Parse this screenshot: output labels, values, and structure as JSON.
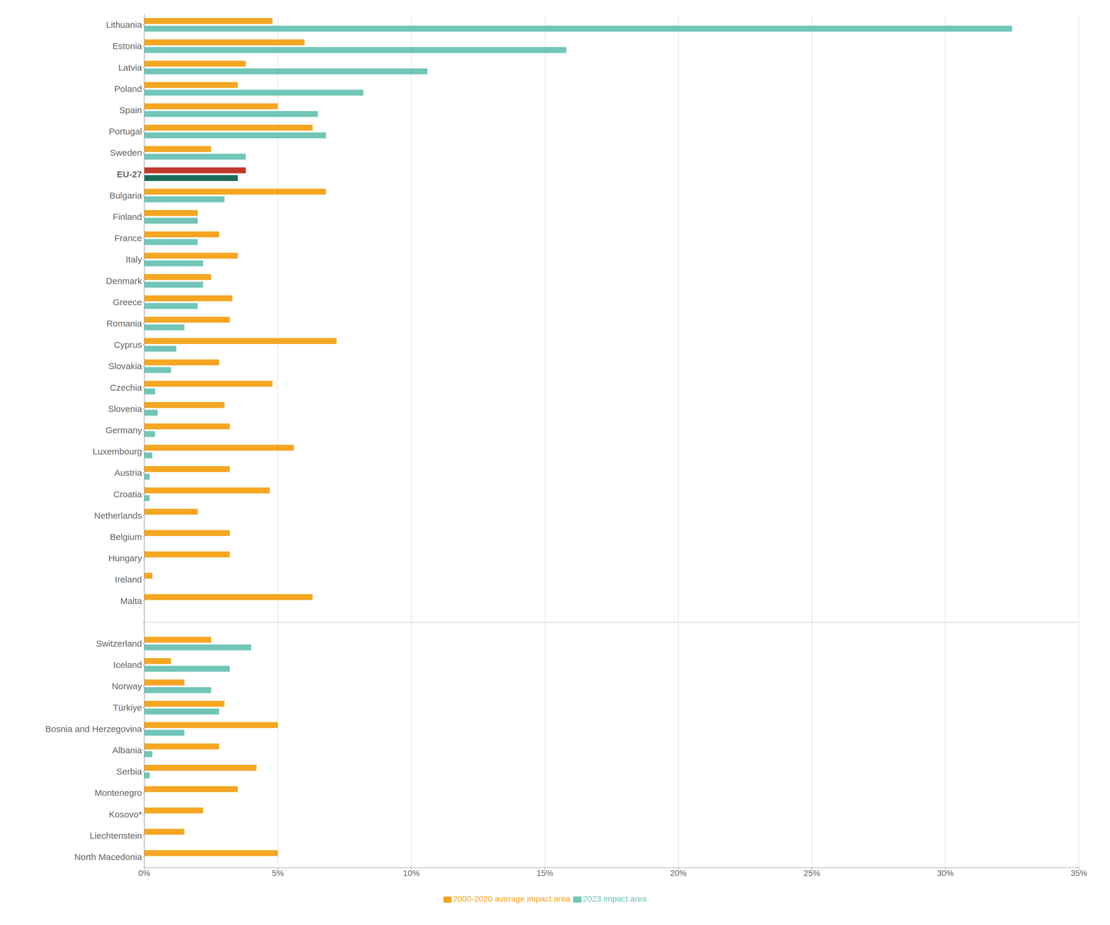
{
  "chart_data": {
    "type": "bar",
    "orientation": "horizontal",
    "categories": [
      "Lithuania",
      "Estonia",
      "Latvia",
      "Poland",
      "Spain",
      "Portugal",
      "Sweden",
      "EU-27",
      "Bulgaria",
      "Finland",
      "France",
      "Italy",
      "Denmark",
      "Greece",
      "Romania",
      "Cyprus",
      "Slovakia",
      "Czechia",
      "Slovenia",
      "Germany",
      "Luxembourg",
      "Austria",
      "Croatia",
      "Netherlands",
      "Belgium",
      "Hungary",
      "Ireland",
      "Malta",
      null,
      "Switzerland",
      "Iceland",
      "Norway",
      "Türkiye",
      "Bosnia and Herzegovina",
      "Albania",
      "Serbia",
      "Montenegro",
      "Kosovo*",
      "Liechtenstein",
      "North Macedonia"
    ],
    "series": [
      {
        "name": "2000-2020 average impact area",
        "color": "#F5A623",
        "colors": [
          "#F5A623",
          "#F5A623",
          "#F5A623",
          "#F5A623",
          "#F5A623",
          "#F5A623",
          "#F5A623",
          "#C0392B",
          "#F5A623",
          "#F5A623",
          "#F5A623",
          "#F5A623",
          "#F5A623",
          "#F5A623",
          "#F5A623",
          "#F5A623",
          "#F5A623",
          "#F5A623",
          "#F5A623",
          "#F5A623",
          "#F5A623",
          "#F5A623",
          "#F5A623",
          "#F5A623",
          "#F5A623",
          "#F5A623",
          "#F5A623",
          "#F5A623",
          "#F5A623",
          "#F5A623",
          "#F5A623",
          "#F5A623",
          "#F5A623",
          "#F5A623",
          "#F5A623",
          "#F5A623",
          "#F5A623",
          "#F5A623",
          "#F5A623",
          "#F5A623"
        ],
        "values": [
          4.8,
          6.0,
          3.8,
          3.5,
          5.0,
          6.3,
          2.5,
          3.8,
          6.8,
          2.0,
          2.8,
          3.5,
          2.5,
          3.3,
          3.2,
          7.2,
          2.8,
          4.8,
          3.0,
          3.2,
          5.6,
          3.2,
          4.7,
          2.0,
          3.2,
          3.2,
          0.3,
          6.3,
          0.0,
          2.5,
          1.0,
          1.5,
          3.0,
          5.0,
          2.8,
          4.2,
          3.5,
          2.2,
          1.5,
          5.0
        ]
      },
      {
        "name": "2023 impact area",
        "color": "#72C6B7",
        "colors": [
          "#72C6B7",
          "#72C6B7",
          "#72C6B7",
          "#72C6B7",
          "#72C6B7",
          "#72C6B7",
          "#72C6B7",
          "#1A6B5A",
          "#72C6B7",
          "#72C6B7",
          "#72C6B7",
          "#72C6B7",
          "#72C6B7",
          "#72C6B7",
          "#72C6B7",
          "#72C6B7",
          "#72C6B7",
          "#72C6B7",
          "#72C6B7",
          "#72C6B7",
          "#72C6B7",
          "#72C6B7",
          "#72C6B7",
          "#72C6B7",
          "#72C6B7",
          "#72C6B7",
          "#72C6B7",
          "#72C6B7",
          "#72C6B7",
          "#72C6B7",
          "#72C6B7",
          "#72C6B7",
          "#72C6B7",
          "#72C6B7",
          "#72C6B7",
          "#72C6B7",
          "#72C6B7",
          "#72C6B7",
          "#72C6B7",
          "#72C6B7"
        ],
        "values": [
          32.5,
          15.8,
          10.6,
          8.2,
          6.5,
          6.8,
          3.8,
          3.5,
          3.0,
          2.0,
          2.0,
          2.2,
          2.2,
          2.0,
          1.5,
          1.2,
          1.0,
          0.4,
          0.5,
          0.4,
          0.3,
          0.2,
          0.2,
          0.0,
          0.0,
          0.0,
          0.0,
          0.0,
          0.0,
          4.0,
          3.2,
          2.5,
          2.8,
          1.5,
          0.3,
          0.2,
          0.0,
          0.0,
          0.0,
          0.0
        ]
      }
    ],
    "xlim": [
      0,
      35
    ],
    "xticks": [
      {
        "value": 0,
        "label": "0%"
      },
      {
        "value": 5,
        "label": "5%"
      },
      {
        "value": 10,
        "label": "10%"
      },
      {
        "value": 15,
        "label": "15%"
      },
      {
        "value": 20,
        "label": "20%"
      },
      {
        "value": 25,
        "label": "25%"
      },
      {
        "value": 30,
        "label": "30%"
      },
      {
        "value": 35,
        "label": "35%"
      }
    ],
    "grid": true,
    "legend": "bottom"
  }
}
